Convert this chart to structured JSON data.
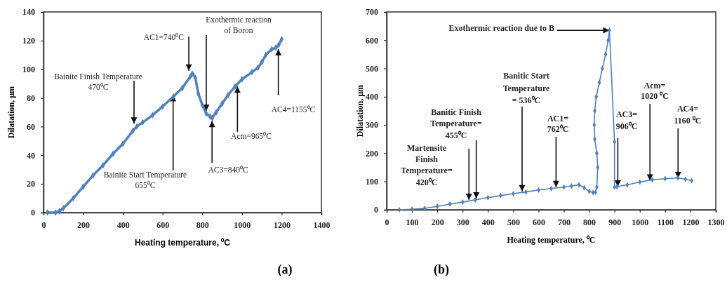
{
  "chart_data": [
    {
      "type": "line",
      "title": "(a)",
      "xlabel": "Heating temperature, ⁰C",
      "ylabel": "Dilatation, µm",
      "xlim": [
        0,
        1400
      ],
      "xticks": [
        0,
        200,
        400,
        600,
        800,
        1000,
        1200,
        1400
      ],
      "ylim": [
        0,
        140
      ],
      "yticks": [
        0,
        20,
        40,
        60,
        80,
        100,
        120,
        140
      ],
      "grid": false,
      "marker": "diamond",
      "line_style": "solid",
      "color": "#4f81bd",
      "x": [
        20,
        60,
        80,
        100,
        150,
        200,
        250,
        300,
        350,
        400,
        450,
        470,
        500,
        550,
        600,
        655,
        700,
        740,
        750,
        765,
        780,
        800,
        820,
        840,
        850,
        870,
        900,
        930,
        965,
        1000,
        1050,
        1080,
        1100,
        1120,
        1150,
        1170,
        1185,
        1200
      ],
      "values": [
        0,
        0,
        1,
        3,
        10,
        18,
        26,
        33,
        41,
        48,
        57,
        60,
        63,
        68,
        74,
        81,
        87,
        95,
        97,
        94,
        83,
        75,
        69,
        67,
        66,
        70,
        76,
        82,
        88,
        93,
        98,
        101,
        105,
        110,
        114,
        115,
        117,
        121
      ],
      "annotations": [
        {
          "text": "AC1=740⁰C",
          "x": 732,
          "y": 99
        },
        {
          "text": "Exothermic reaction\nof Boron",
          "x": 820,
          "y": 71
        },
        {
          "text": "Bainite Finish Temperature\n470⁰C",
          "x": 456,
          "y": 62
        },
        {
          "text": "Bainite Start Temperature\n655⁰C",
          "x": 653,
          "y": 82
        },
        {
          "text": "AC3=840⁰C",
          "x": 849,
          "y": 64
        },
        {
          "text": "Acm=965⁰C",
          "x": 977,
          "y": 88
        },
        {
          "text": "AC4=1155⁰C",
          "x": 1183,
          "y": 114
        }
      ]
    },
    {
      "type": "line",
      "title": "(b)",
      "xlabel": "Heating temperature, ⁰C",
      "ylabel": "Dilatation, µm",
      "xlim": [
        0,
        1300
      ],
      "xticks": [
        0,
        100,
        200,
        300,
        400,
        500,
        600,
        700,
        800,
        900,
        1000,
        1100,
        1200,
        1300
      ],
      "ylim": [
        0,
        700
      ],
      "yticks": [
        0,
        100,
        200,
        300,
        400,
        500,
        600,
        700
      ],
      "grid": false,
      "marker": "diamond",
      "line_style": "solid",
      "color": "#4f81bd",
      "x": [
        50,
        100,
        150,
        200,
        250,
        300,
        350,
        400,
        450,
        500,
        550,
        600,
        650,
        700,
        730,
        760,
        780,
        800,
        815,
        825,
        830,
        834,
        830,
        822,
        820,
        822,
        828,
        840,
        852,
        865,
        875,
        880,
        900,
        900,
        910,
        950,
        1000,
        1050,
        1100,
        1150,
        1180,
        1205
      ],
      "values": [
        0,
        2,
        5,
        12,
        20,
        27,
        35,
        43,
        50,
        57,
        63,
        70,
        75,
        80,
        84,
        88,
        78,
        65,
        61,
        62,
        80,
        150,
        200,
        250,
        300,
        350,
        400,
        450,
        500,
        550,
        600,
        635,
        240,
        80,
        82,
        88,
        98,
        106,
        110,
        113,
        108,
        103
      ],
      "annotations": [
        {
          "text": "Exothermic reaction due to B",
          "x": 880,
          "y": 635
        },
        {
          "text": "Martensite\nFinish\nTemperature=\n420⁰C",
          "x": 325,
          "y": 35
        },
        {
          "text": "Banitic Finish\nTemperature=\n455⁰C",
          "x": 354,
          "y": 40
        },
        {
          "text": "Banitic Start\nTemperature\n= 536⁰C",
          "x": 535,
          "y": 65
        },
        {
          "text": "AC1=\n762⁰C",
          "x": 669,
          "y": 80
        },
        {
          "text": "AC3=\n906⁰C",
          "x": 913,
          "y": 82
        },
        {
          "text": "Acm=\n1020 ⁰C",
          "x": 1040,
          "y": 103
        },
        {
          "text": "AC4=\n1160 ⁰C",
          "x": 1151,
          "y": 112
        }
      ]
    }
  ]
}
